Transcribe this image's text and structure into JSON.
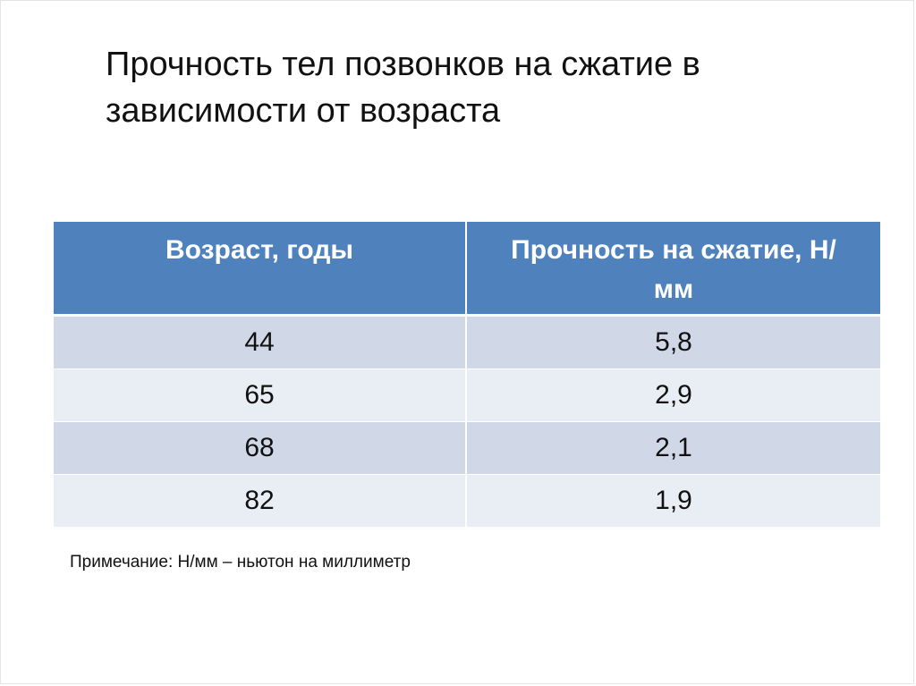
{
  "slide": {
    "title": "Прочность тел позвонков на сжатие в зависимости от возраста",
    "table": {
      "headers": [
        "Возраст, годы",
        "Прочность на сжатие, Н/мм"
      ],
      "rows": [
        [
          "44",
          "5,8"
        ],
        [
          "65",
          "2,9"
        ],
        [
          "68",
          "2,1"
        ],
        [
          "82",
          "1,9"
        ]
      ]
    },
    "note": "Примечание: Н/мм – ньютон на миллиметр"
  },
  "colors": {
    "header_bg": "#4f81bd",
    "row_odd_bg": "#d0d8e8",
    "row_even_bg": "#e9edf4"
  }
}
